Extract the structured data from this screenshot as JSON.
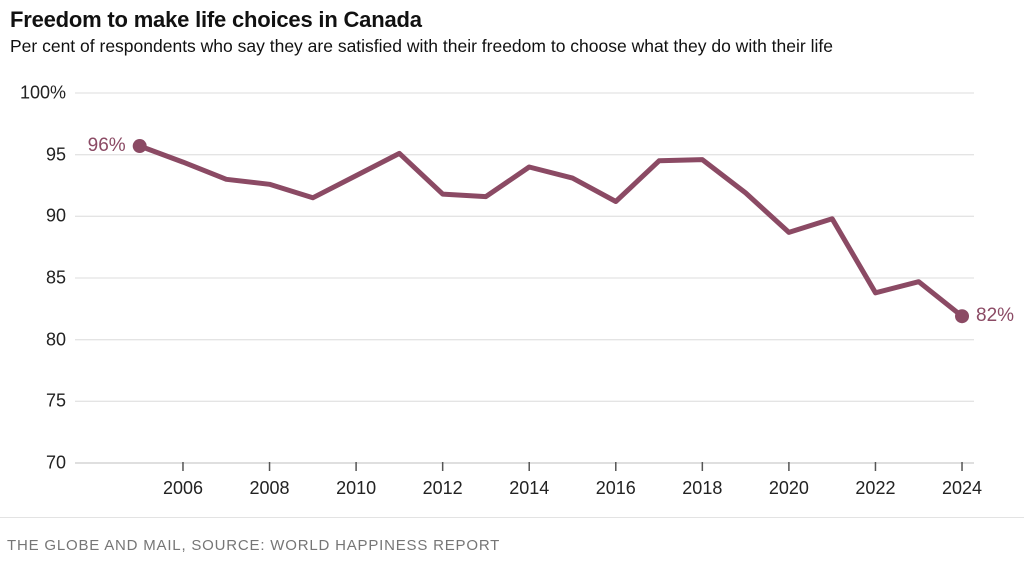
{
  "header": {
    "title": "Freedom to make life choices in Canada",
    "subtitle": "Per cent of respondents who say they are satisfied with their freedom to choose what they do with their life"
  },
  "chart_data": {
    "type": "line",
    "title": "Freedom to make life choices in Canada",
    "subtitle": "Per cent of respondents who say they are satisfied with their freedom to choose what they do with their life",
    "series_name": "Canada",
    "x": [
      2005,
      2006,
      2007,
      2008,
      2009,
      2010,
      2011,
      2012,
      2013,
      2014,
      2015,
      2016,
      2017,
      2018,
      2019,
      2020,
      2021,
      2022,
      2023,
      2024
    ],
    "values": [
      95.7,
      94.4,
      93.0,
      92.6,
      91.5,
      93.3,
      95.1,
      91.8,
      91.6,
      94.0,
      93.1,
      91.2,
      94.5,
      94.6,
      91.9,
      88.7,
      89.8,
      83.8,
      84.7,
      81.9
    ],
    "xlabel": "",
    "ylabel": "",
    "ylim": [
      70,
      100
    ],
    "y_tick_values": [
      100,
      95,
      90,
      85,
      80,
      75,
      70
    ],
    "y_tick_labels": [
      "100%",
      "95",
      "90",
      "85",
      "80",
      "75",
      "70"
    ],
    "x_tick_values": [
      2006,
      2008,
      2010,
      2012,
      2014,
      2016,
      2018,
      2020,
      2022,
      2024
    ],
    "x_tick_labels": [
      "2006",
      "2008",
      "2010",
      "2012",
      "2014",
      "2016",
      "2018",
      "2020",
      "2022",
      "2024"
    ],
    "grid": "horizontal",
    "legend": "none",
    "annotations": [
      {
        "point_index": 0,
        "label": "96%",
        "anchor": "left"
      },
      {
        "point_index": 19,
        "label": "82%",
        "anchor": "right"
      }
    ]
  },
  "colors": {
    "line": "#8b4a64",
    "annotation_text": "#8b4a64",
    "grid_line": "#e4e4e4",
    "axis_line": "#cccccc",
    "tick_mark": "#555555",
    "text": "#1a1a1a"
  },
  "footer": {
    "source": "THE GLOBE AND MAIL, SOURCE: WORLD HAPPINESS REPORT"
  }
}
